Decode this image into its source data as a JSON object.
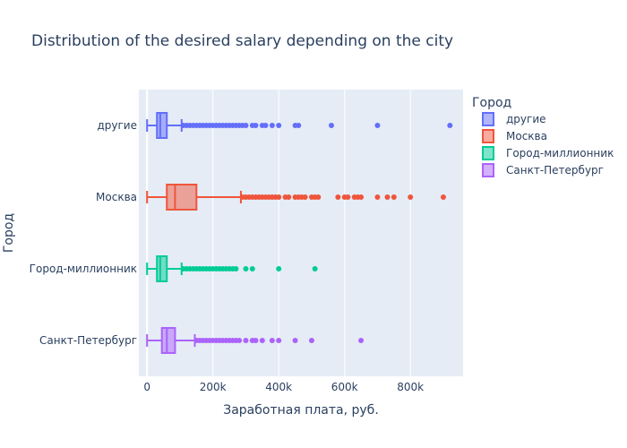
{
  "chart_data": {
    "type": "box",
    "orientation": "horizontal",
    "title": "Distribution of the desired salary depending on the city",
    "xlabel": "Заработная плата, руб.",
    "ylabel": "Город",
    "xlim": [
      -25000,
      960000
    ],
    "x_ticks": [
      0,
      200000,
      400000,
      600000,
      800000
    ],
    "x_tick_labels": [
      "0",
      "200k",
      "400k",
      "600k",
      "800k"
    ],
    "grid": true,
    "legend": {
      "title": "Город",
      "placement": "right"
    },
    "series": [
      {
        "name": "другие",
        "color": "#636efa",
        "fill": "rgba(99,110,250,0.5)",
        "box": {
          "min": 0,
          "q1": 30000,
          "median": 40000,
          "q3": 60000,
          "upper_fence": 105000
        },
        "outliers": [
          110000,
          120000,
          130000,
          140000,
          150000,
          160000,
          170000,
          180000,
          190000,
          200000,
          210000,
          220000,
          230000,
          240000,
          250000,
          260000,
          270000,
          280000,
          290000,
          300000,
          320000,
          330000,
          350000,
          360000,
          380000,
          400000,
          450000,
          460000,
          560000,
          700000,
          920000
        ]
      },
      {
        "name": "Москва",
        "color": "#ef553b",
        "fill": "rgba(239,85,59,0.5)",
        "box": {
          "min": 0,
          "q1": 60000,
          "median": 85000,
          "q3": 150000,
          "upper_fence": 285000
        },
        "outliers": [
          290000,
          300000,
          310000,
          320000,
          330000,
          340000,
          350000,
          360000,
          370000,
          380000,
          390000,
          400000,
          420000,
          430000,
          450000,
          460000,
          470000,
          480000,
          500000,
          510000,
          520000,
          580000,
          600000,
          610000,
          630000,
          640000,
          650000,
          700000,
          730000,
          750000,
          800000,
          900000
        ]
      },
      {
        "name": "Город-миллионник",
        "color": "#00cc96",
        "fill": "rgba(0,204,150,0.5)",
        "box": {
          "min": 0,
          "q1": 30000,
          "median": 40000,
          "q3": 60000,
          "upper_fence": 105000
        },
        "outliers": [
          110000,
          120000,
          130000,
          140000,
          150000,
          160000,
          170000,
          180000,
          190000,
          200000,
          210000,
          220000,
          230000,
          240000,
          250000,
          260000,
          270000,
          300000,
          320000,
          400000,
          510000
        ]
      },
      {
        "name": "Санкт-Петербург",
        "color": "#ab63fa",
        "fill": "rgba(171,99,250,0.5)",
        "box": {
          "min": 0,
          "q1": 45000,
          "median": 60000,
          "q3": 85000,
          "upper_fence": 145000
        },
        "outliers": [
          150000,
          160000,
          170000,
          180000,
          190000,
          200000,
          210000,
          220000,
          230000,
          240000,
          250000,
          260000,
          270000,
          280000,
          300000,
          320000,
          330000,
          350000,
          380000,
          400000,
          450000,
          500000,
          650000
        ]
      }
    ]
  }
}
